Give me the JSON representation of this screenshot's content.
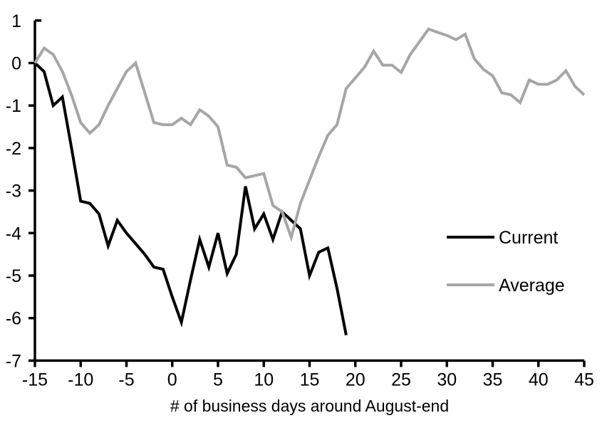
{
  "chart_data": {
    "type": "line",
    "title": "",
    "xlabel": "# of business days around August-end",
    "ylabel": "",
    "xlim": [
      -15,
      45
    ],
    "ylim": [
      -7,
      1
    ],
    "x_ticks": [
      -15,
      -10,
      -5,
      0,
      5,
      10,
      15,
      20,
      25,
      30,
      35,
      40,
      45
    ],
    "y_ticks": [
      1,
      0,
      -1,
      -2,
      -3,
      -4,
      -5,
      -6,
      -7
    ],
    "grid": false,
    "legend_position": "middle-right",
    "axis_color": "#000000",
    "series": [
      {
        "name": "Current",
        "color": "#000000",
        "x_start": -15,
        "x_step": 1,
        "values": [
          0.0,
          -0.2,
          -1.0,
          -0.8,
          -2.0,
          -3.25,
          -3.3,
          -3.55,
          -4.3,
          -3.7,
          -4.0,
          -4.25,
          -4.5,
          -4.8,
          -4.85,
          -5.5,
          -6.1,
          -5.1,
          -4.15,
          -4.8,
          -4.0,
          -4.95,
          -4.5,
          -2.9,
          -3.9,
          -3.55,
          -4.15,
          -3.5,
          -3.7,
          -3.9,
          -5.0,
          -4.45,
          -4.35,
          -5.3,
          -6.4
        ]
      },
      {
        "name": "Average",
        "color": "#a6a6a6",
        "x_start": -15,
        "x_step": 1,
        "values": [
          0.0,
          0.35,
          0.2,
          -0.2,
          -0.75,
          -1.4,
          -1.65,
          -1.45,
          -1.0,
          -0.6,
          -0.2,
          0.0,
          -0.7,
          -1.4,
          -1.45,
          -1.45,
          -1.3,
          -1.45,
          -1.1,
          -1.25,
          -1.5,
          -2.4,
          -2.45,
          -2.7,
          -2.65,
          -2.6,
          -3.35,
          -3.5,
          -4.1,
          -3.3,
          -2.75,
          -2.2,
          -1.7,
          -1.45,
          -0.6,
          -0.35,
          -0.1,
          0.28,
          -0.05,
          -0.05,
          -0.22,
          0.2,
          0.5,
          0.8,
          0.72,
          0.65,
          0.55,
          0.68,
          0.1,
          -0.15,
          -0.3,
          -0.7,
          -0.75,
          -0.93,
          -0.4,
          -0.5,
          -0.5,
          -0.4,
          -0.18,
          -0.55,
          -0.75
        ]
      }
    ]
  },
  "legend": {
    "entries": [
      {
        "label": "Current",
        "color": "#000000"
      },
      {
        "label": "Average",
        "color": "#a6a6a6"
      }
    ]
  }
}
